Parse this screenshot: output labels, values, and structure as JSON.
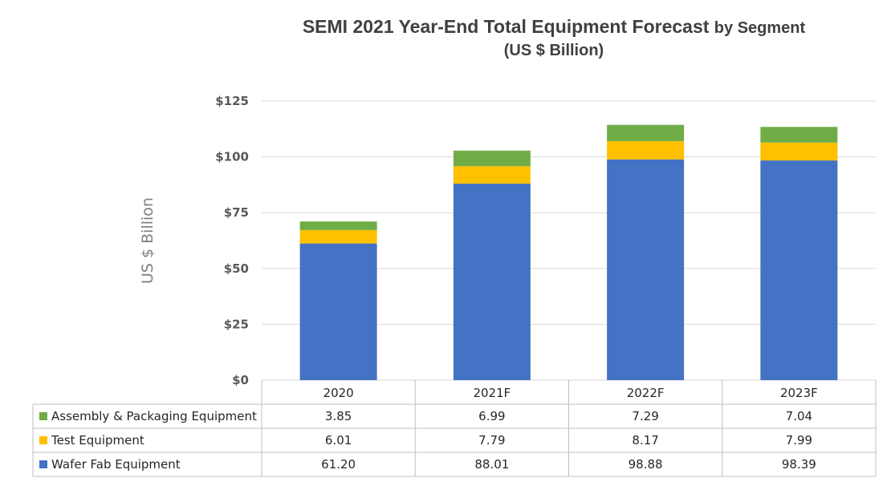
{
  "chart_data": {
    "type": "bar",
    "stacked": true,
    "title": "SEMI 2021 Year-End Total Equipment Forecast",
    "title_suffix": "by Segment",
    "subtitle": "(US $ Billion)",
    "ylabel": "US $ Billion",
    "xlabel": "",
    "ylim": [
      0,
      125
    ],
    "yticks": [
      0,
      25,
      50,
      75,
      100,
      125
    ],
    "ytick_labels": [
      "$0",
      "$25",
      "$50",
      "$75",
      "$100",
      "$125"
    ],
    "grid": true,
    "legend": "data-table-left",
    "categories": [
      "2020",
      "2021F",
      "2022F",
      "2023F"
    ],
    "series": [
      {
        "name": "Wafer Fab Equipment",
        "color": "#4472C4",
        "values": [
          61.2,
          88.01,
          98.88,
          98.39
        ],
        "labels": [
          "61.20",
          "88.01",
          "98.88",
          "98.39"
        ]
      },
      {
        "name": "Test Equipment",
        "color": "#FFC000",
        "values": [
          6.01,
          7.79,
          8.17,
          7.99
        ],
        "labels": [
          "6.01",
          "7.79",
          "8.17",
          "7.99"
        ]
      },
      {
        "name": "Assembly & Packaging Equipment",
        "color": "#70AD47",
        "values": [
          3.85,
          6.99,
          7.29,
          7.04
        ],
        "labels": [
          "3.85",
          "6.99",
          "7.29",
          "7.04"
        ]
      }
    ]
  }
}
